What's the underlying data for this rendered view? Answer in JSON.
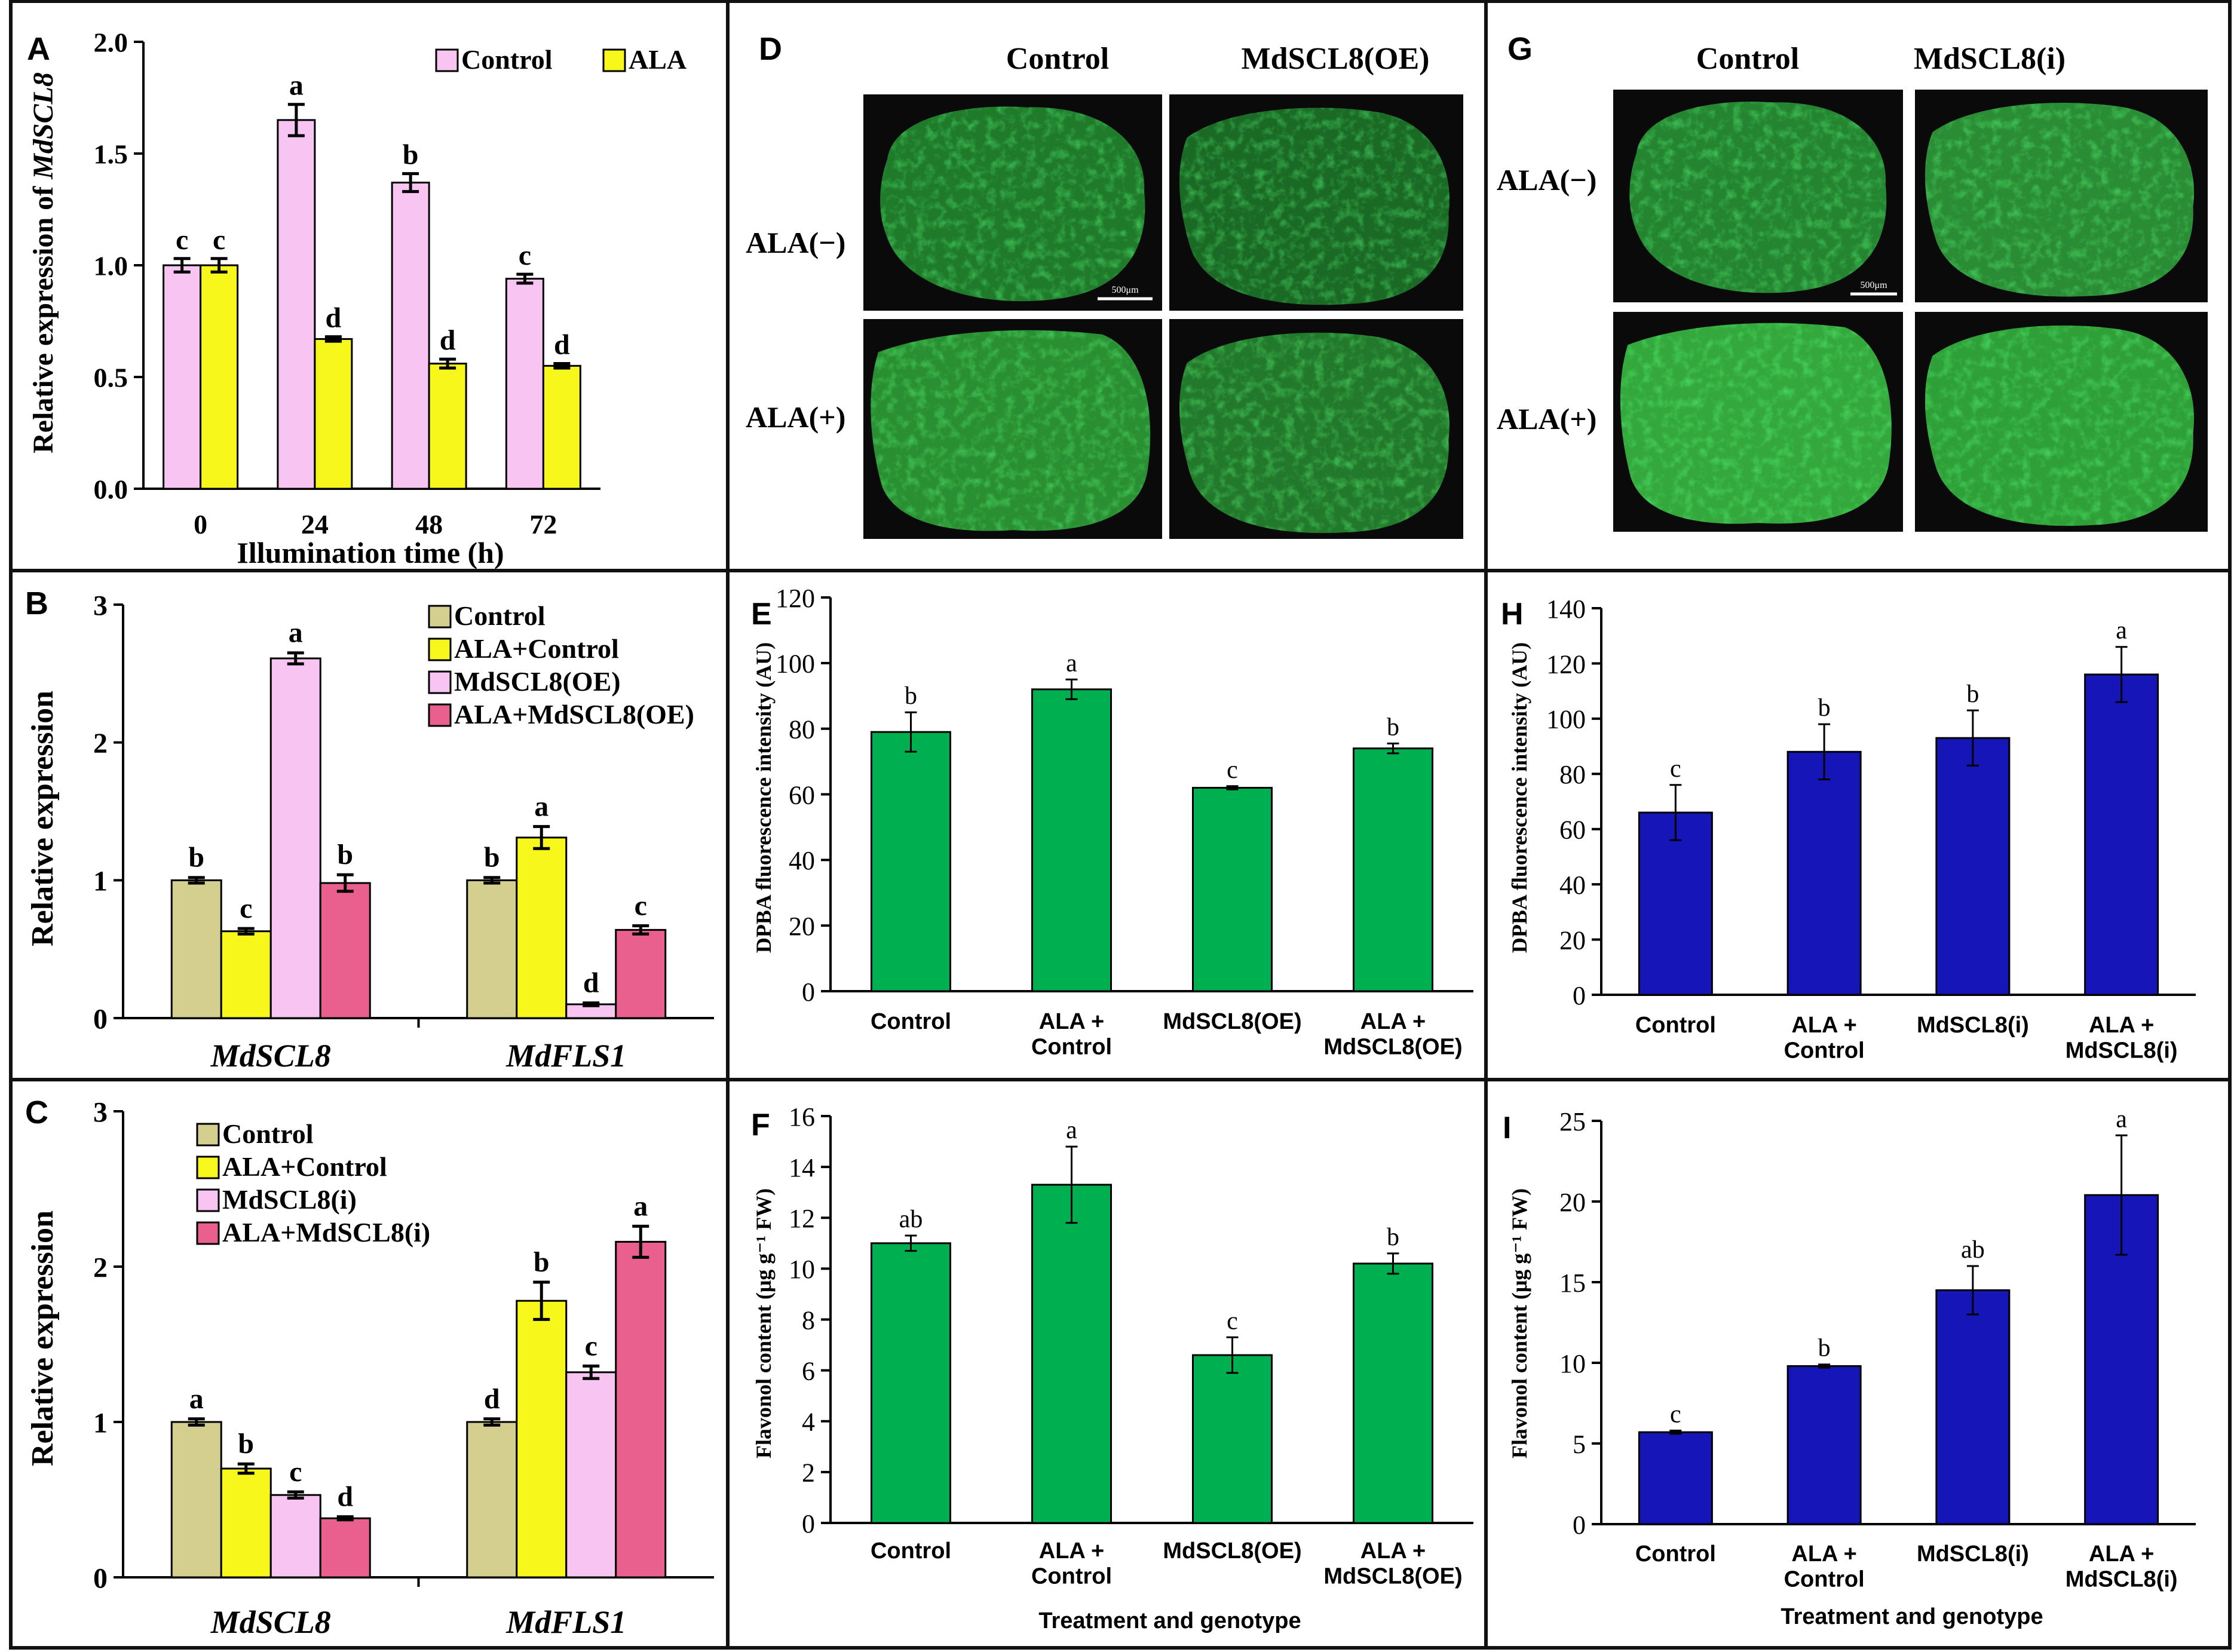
{
  "colors": {
    "control_khaki": "#D4CF8E",
    "ala_yellow": "#F7F71B",
    "oe_pink": "#F8C4F2",
    "ala_oe_rose": "#E9608F",
    "green_bar": "#00B050",
    "blue_bar": "#1515B8",
    "micrograph_bg": "#0A0A0A",
    "tissue_green": "#2E9A36"
  },
  "micrographs": {
    "D": {
      "label": "D",
      "col_headers": [
        "Control",
        "MdSCL8(OE)"
      ],
      "row_labels": [
        "ALA(−)",
        "ALA(+)"
      ],
      "scale_bar": "500μm"
    },
    "G": {
      "label": "G",
      "col_headers": [
        "Control",
        "MdSCL8(i)"
      ],
      "row_labels": [
        "ALA(−)",
        "ALA(+)"
      ],
      "scale_bar": "500μm"
    }
  },
  "chart_data": [
    {
      "id": "A",
      "panel_label": "A",
      "type": "bar",
      "title": "",
      "xlabel": "Illumination time (h)",
      "ylabel": "Relative expression of ",
      "ylabel_italic": "MdSCL8",
      "ylim": [
        0,
        2.0
      ],
      "yticks": [
        "0.0",
        "0.5",
        "1.0",
        "1.5",
        "2.0"
      ],
      "categories": [
        "0",
        "24",
        "48",
        "72"
      ],
      "series": [
        {
          "name": "Control",
          "color": "#F8C4F2",
          "values": [
            1.0,
            1.65,
            1.37,
            0.94
          ],
          "errors": [
            0.03,
            0.07,
            0.04,
            0.02
          ],
          "letters": [
            "c",
            "a",
            "b",
            "c"
          ]
        },
        {
          "name": "ALA",
          "color": "#F7F71B",
          "values": [
            1.0,
            0.67,
            0.56,
            0.55
          ],
          "errors": [
            0.03,
            0.01,
            0.02,
            0.01
          ],
          "letters": [
            "c",
            "d",
            "d",
            "d"
          ]
        }
      ]
    },
    {
      "id": "B",
      "panel_label": "B",
      "type": "bar",
      "title": "",
      "xlabel": "",
      "ylabel": "Relative expression",
      "ylim": [
        0,
        3
      ],
      "yticks": [
        "0",
        "1",
        "2",
        "3"
      ],
      "categories": [
        "MdSCL8",
        "MdFLS1"
      ],
      "series": [
        {
          "name": "Control",
          "color": "#D4CF8E",
          "values": [
            1.0,
            1.0
          ],
          "errors": [
            0.02,
            0.02
          ],
          "letters": [
            "b",
            "b"
          ]
        },
        {
          "name": "ALA+Control",
          "color": "#F7F71B",
          "values": [
            0.63,
            1.31
          ],
          "errors": [
            0.02,
            0.08
          ],
          "letters": [
            "c",
            "a"
          ]
        },
        {
          "name": "MdSCL8(OE)",
          "color": "#F8C4F2",
          "values": [
            2.61,
            0.1
          ],
          "errors": [
            0.04,
            0.01
          ],
          "letters": [
            "a",
            "d"
          ]
        },
        {
          "name": "ALA+MdSCL8(OE)",
          "color": "#E9608F",
          "values": [
            0.98,
            0.64
          ],
          "errors": [
            0.06,
            0.03
          ],
          "letters": [
            "b",
            "c"
          ]
        }
      ]
    },
    {
      "id": "C",
      "panel_label": "C",
      "type": "bar",
      "title": "",
      "xlabel": "",
      "ylabel": "Relative expression",
      "ylim": [
        0,
        3
      ],
      "yticks": [
        "0",
        "1",
        "2",
        "3"
      ],
      "categories": [
        "MdSCL8",
        "MdFLS1"
      ],
      "series": [
        {
          "name": "Control",
          "color": "#D4CF8E",
          "values": [
            1.0,
            1.0
          ],
          "errors": [
            0.02,
            0.02
          ],
          "letters": [
            "a",
            "d"
          ]
        },
        {
          "name": "ALA+Control",
          "color": "#F7F71B",
          "values": [
            0.7,
            1.78
          ],
          "errors": [
            0.03,
            0.12
          ],
          "letters": [
            "b",
            "b"
          ]
        },
        {
          "name": "MdSCL8(i)",
          "color": "#F8C4F2",
          "values": [
            0.53,
            1.32
          ],
          "errors": [
            0.02,
            0.04
          ],
          "letters": [
            "c",
            "c"
          ]
        },
        {
          "name": "ALA+MdSCL8(i)",
          "color": "#E9608F",
          "values": [
            0.38,
            2.16
          ],
          "errors": [
            0.01,
            0.1
          ],
          "letters": [
            "d",
            "a"
          ]
        }
      ]
    },
    {
      "id": "E",
      "panel_label": "E",
      "type": "bar",
      "title": "",
      "xlabel": "",
      "ylabel": "DPBA fluorescence intensity (AU)",
      "ylim": [
        0,
        120
      ],
      "yticks": [
        "0",
        "20",
        "40",
        "60",
        "80",
        "100",
        "120"
      ],
      "categories": [
        "Control",
        "ALA + Control",
        "MdSCL8(OE)",
        "ALA + MdSCL8(OE)"
      ],
      "series": [
        {
          "name": "DPBA",
          "color": "#00B050",
          "values": [
            79,
            92,
            62,
            74
          ],
          "errors": [
            6,
            3,
            0.5,
            1.5
          ],
          "letters": [
            "b",
            "a",
            "c",
            "b"
          ]
        }
      ]
    },
    {
      "id": "F",
      "panel_label": "F",
      "type": "bar",
      "title": "",
      "xlabel": "Treatment and genotype",
      "ylabel": "Flavonol content (μg g⁻¹ FW)",
      "ylim": [
        0,
        16
      ],
      "yticks": [
        "0",
        "2",
        "4",
        "6",
        "8",
        "10",
        "12",
        "14",
        "16"
      ],
      "categories": [
        "Control",
        "ALA + Control",
        "MdSCL8(OE)",
        "ALA + MdSCL8(OE)"
      ],
      "series": [
        {
          "name": "Flavonol",
          "color": "#00B050",
          "values": [
            11.0,
            13.3,
            6.6,
            10.2
          ],
          "errors": [
            0.3,
            1.5,
            0.7,
            0.4
          ],
          "letters": [
            "ab",
            "a",
            "c",
            "b"
          ]
        }
      ]
    },
    {
      "id": "H",
      "panel_label": "H",
      "type": "bar",
      "title": "",
      "xlabel": "",
      "ylabel": "DPBA fluorescence intensity (AU)",
      "ylim": [
        0,
        140
      ],
      "yticks": [
        "0",
        "20",
        "40",
        "60",
        "80",
        "100",
        "120",
        "140"
      ],
      "categories": [
        "Control",
        "ALA + Control",
        "MdSCL8(i)",
        "ALA + MdSCL8(i)"
      ],
      "series": [
        {
          "name": "DPBA",
          "color": "#1515B8",
          "values": [
            66,
            88,
            93,
            116
          ],
          "errors": [
            10,
            10,
            10,
            10
          ],
          "letters": [
            "c",
            "b",
            "b",
            "a"
          ]
        }
      ]
    },
    {
      "id": "I",
      "panel_label": "I",
      "type": "bar",
      "title": "",
      "xlabel": "Treatment and genotype",
      "ylabel": "Flavonol content (μg g⁻¹ FW)",
      "ylim": [
        0,
        25
      ],
      "yticks": [
        "0",
        "5",
        "10",
        "15",
        "20",
        "25"
      ],
      "categories": [
        "Control",
        "ALA + Control",
        "MdSCL8(i)",
        "ALA + MdSCL8(i)"
      ],
      "series": [
        {
          "name": "Flavonol",
          "color": "#1515B8",
          "values": [
            5.7,
            9.8,
            14.5,
            20.4
          ],
          "errors": [
            0.1,
            0.1,
            1.5,
            3.7
          ],
          "letters": [
            "c",
            "b",
            "ab",
            "a"
          ]
        }
      ]
    }
  ]
}
